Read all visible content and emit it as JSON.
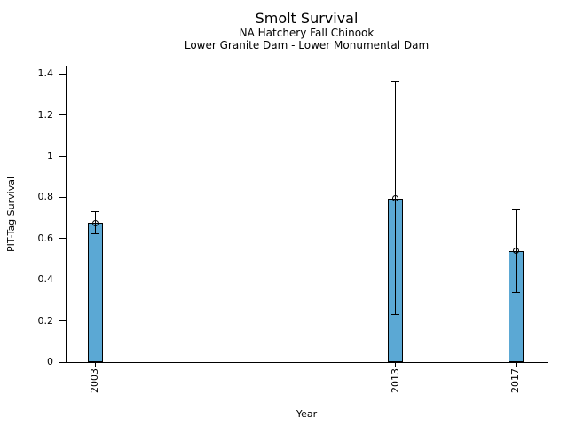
{
  "chart_data": {
    "type": "bar",
    "title": "Smolt Survival",
    "subtitle1": "NA Hatchery Fall Chinook",
    "subtitle2": "Lower Granite Dam - Lower Monumental Dam",
    "xlabel": "Year",
    "ylabel": "PIT-Tag Survival",
    "categories": [
      2003,
      2013,
      2017
    ],
    "category_labels": [
      "2003",
      "2013",
      "2017"
    ],
    "values": [
      0.675,
      0.795,
      0.54
    ],
    "error_low": [
      0.625,
      0.23,
      0.34
    ],
    "error_high": [
      0.73,
      1.365,
      0.74
    ],
    "xlim": [
      2002.02,
      2018.05
    ],
    "ylim": [
      0,
      1.44
    ],
    "ytick_values": [
      0,
      0.2,
      0.4,
      0.6,
      0.8,
      1,
      1.2,
      1.4
    ],
    "ytick_labels": [
      "0",
      "0.2",
      "0.4",
      "0.6",
      "0.8",
      "1",
      "1.2",
      "1.4"
    ],
    "bar_color": "#5BA8D4",
    "bar_edge_color": "#000000",
    "marker": "open-circle",
    "grid": false,
    "legend": null
  }
}
